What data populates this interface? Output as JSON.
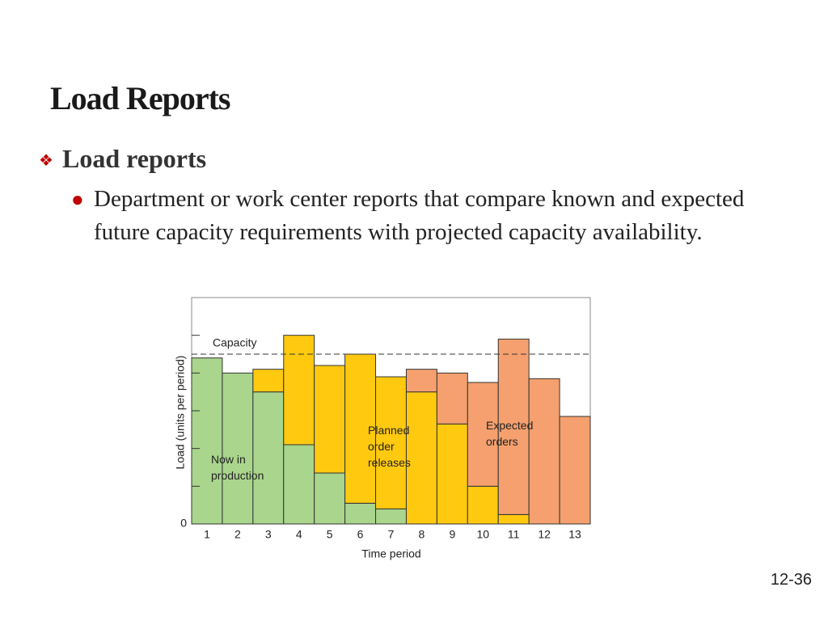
{
  "slide": {
    "title": "Load Reports",
    "bullet": "Load reports",
    "sub_bullet": "Department or work center reports that compare known and expected future capacity requirements with projected capacity availability.",
    "page_number": "12-36"
  },
  "chart_data": {
    "type": "stacked_bar",
    "x_label": "Time period",
    "y_label": "Load (units per period)",
    "categories": [
      "1",
      "2",
      "3",
      "4",
      "5",
      "6",
      "7",
      "8",
      "9",
      "10",
      "11",
      "12",
      "13"
    ],
    "series": [
      {
        "name": "Now in production",
        "color": "#a9d58c",
        "values": [
          4.4,
          4.0,
          3.5,
          2.1,
          1.35,
          0.55,
          0.4,
          null,
          null,
          null,
          null,
          null,
          null
        ]
      },
      {
        "name": "Planned order releases",
        "color": "#ffc910",
        "values": [
          null,
          null,
          0.6,
          2.9,
          2.85,
          3.95,
          3.5,
          3.5,
          2.65,
          1.0,
          0.25,
          null,
          null
        ]
      },
      {
        "name": "Expected orders",
        "color": "#f5a06e",
        "values": [
          null,
          null,
          null,
          null,
          null,
          null,
          null,
          0.6,
          1.35,
          2.75,
          4.65,
          3.85,
          2.85
        ]
      }
    ],
    "capacity": {
      "label": "Capacity",
      "value": 4.5
    },
    "ylim": [
      0,
      6
    ],
    "yticks": [
      0
    ],
    "minor_yticks": [
      1,
      2,
      3,
      4,
      5
    ]
  }
}
